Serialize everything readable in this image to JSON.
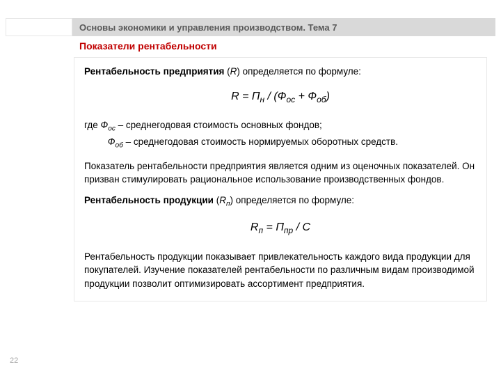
{
  "colors": {
    "header_bar_bg": "#d9d9d9",
    "header_text": "#595959",
    "subtitle": "#c00000",
    "body_border": "#e8e8e8",
    "page_num": "#a6a6a6",
    "background": "#ffffff",
    "text": "#000000"
  },
  "fonts": {
    "base_family": "Arial",
    "header_size_pt": 10,
    "subtitle_size_pt": 11,
    "body_size_pt": 10.5,
    "formula_size_pt": 12
  },
  "header": {
    "course_title": "Основы экономики и управления производством.  Тема 7"
  },
  "subtitle": "Показатели рентабельности",
  "body": {
    "p1_bold": "Рентабельность предприятия",
    "p1_rest_a": " (",
    "p1_var": "R",
    "p1_rest_b": ") определяется по формуле:",
    "formula1": "R = П",
    "formula1_sub1": "н",
    "formula1_mid": " / (Ф",
    "formula1_sub2": "ос",
    "formula1_mid2": " + Ф",
    "formula1_sub3": "об",
    "formula1_end": ")",
    "where_label": "где   ",
    "where1_sym": "Ф",
    "where1_sub": "ос",
    "where1_txt": " – среднегодовая стоимость основных фондов;",
    "where2_pad": "         ",
    "where2_sym": "Ф",
    "where2_sub": "об",
    "where2_txt": " – среднегодовая стоимость нормируемых оборотных средств.",
    "p2": "Показатель рентабельности предприятия является одним из оценочных показателей. Он призван стимулировать рациональное использование производственных фондов.",
    "p3_bold": "Рентабельность продукции",
    "p3_rest_a": " (",
    "p3_var": "R",
    "p3_sub": "п",
    "p3_rest_b": ") определяется по формуле:",
    "formula2_a": "R",
    "formula2_sub1": "п",
    "formula2_b": " = П",
    "formula2_sub2": "пр",
    "formula2_c": " / С",
    "p4": "Рентабельность продукции показывает привлекательность каждого вида продукции для покупателей. Изучение показателей рентабельности по различным видам производимой продукции позволит оптимизировать ассортимент предприятия."
  },
  "page_number": "22"
}
